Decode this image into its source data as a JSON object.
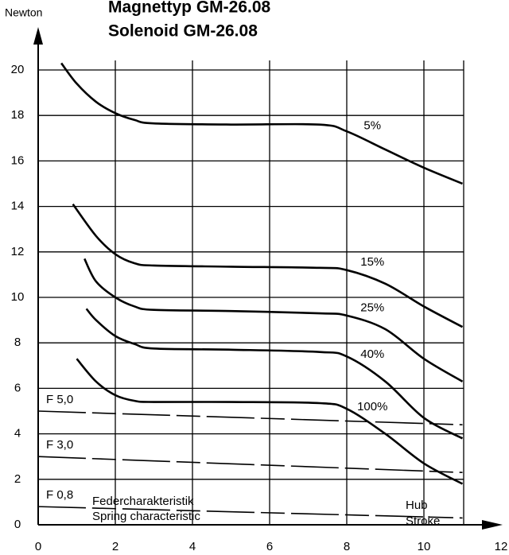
{
  "chart_data": {
    "type": "line",
    "title": "Magnettyp GM-26.08",
    "subtitle": "Solenoid GM-26.08",
    "ylabel": "Newton",
    "xlabel": [
      "Hub",
      "Stroke"
    ],
    "annotations": [
      "Federcharakteristik",
      "Spring characteristic"
    ],
    "xlim": [
      0,
      12
    ],
    "ylim": [
      0,
      20
    ],
    "xticks": [
      0,
      2,
      4,
      6,
      8,
      10,
      12
    ],
    "yticks": [
      0,
      2,
      4,
      6,
      8,
      10,
      12,
      14,
      16,
      18,
      20
    ],
    "grid": true,
    "series": [
      {
        "name": "5%",
        "color": "#000000",
        "style": "solid",
        "x": [
          0.6,
          1.0,
          1.5,
          2.0,
          2.5,
          3.0,
          5.0,
          7.3,
          8.0,
          9.0,
          10.0,
          11.0
        ],
        "values": [
          20.3,
          19.4,
          18.6,
          18.1,
          17.8,
          17.65,
          17.6,
          17.6,
          17.3,
          16.5,
          15.7,
          15.0
        ]
      },
      {
        "name": "15%",
        "color": "#000000",
        "style": "solid",
        "x": [
          0.9,
          1.5,
          2.0,
          2.5,
          3.0,
          5.0,
          7.3,
          8.0,
          9.0,
          10.0,
          11.0
        ],
        "values": [
          14.1,
          12.7,
          11.9,
          11.5,
          11.4,
          11.35,
          11.3,
          11.2,
          10.6,
          9.6,
          8.7
        ]
      },
      {
        "name": "25%",
        "color": "#000000",
        "style": "solid",
        "x": [
          1.2,
          1.5,
          2.0,
          2.5,
          3.0,
          5.0,
          7.3,
          8.0,
          9.0,
          10.0,
          11.0
        ],
        "values": [
          11.7,
          10.7,
          10.0,
          9.6,
          9.45,
          9.4,
          9.3,
          9.2,
          8.6,
          7.3,
          6.3
        ]
      },
      {
        "name": "40%",
        "color": "#000000",
        "style": "solid",
        "x": [
          1.25,
          1.5,
          2.0,
          2.5,
          3.0,
          5.0,
          7.3,
          8.0,
          9.0,
          10.0,
          11.0
        ],
        "values": [
          9.5,
          9.0,
          8.3,
          7.95,
          7.75,
          7.7,
          7.6,
          7.4,
          6.3,
          4.7,
          3.8
        ]
      },
      {
        "name": "100%",
        "color": "#000000",
        "style": "solid",
        "x": [
          1.0,
          1.5,
          2.0,
          2.5,
          3.0,
          5.0,
          7.3,
          8.0,
          9.0,
          10.0,
          11.0
        ],
        "values": [
          7.3,
          6.3,
          5.7,
          5.45,
          5.4,
          5.4,
          5.35,
          5.1,
          4.0,
          2.7,
          1.8
        ]
      },
      {
        "name": "F 5,0",
        "color": "#000000",
        "style": "dashed",
        "x": [
          0,
          11
        ],
        "values": [
          5.0,
          4.4
        ]
      },
      {
        "name": "F 3,0",
        "color": "#000000",
        "style": "dashed",
        "x": [
          0,
          11
        ],
        "values": [
          3.0,
          2.3
        ]
      },
      {
        "name": "F 0,8",
        "color": "#000000",
        "style": "dashed",
        "x": [
          0,
          11
        ],
        "values": [
          0.8,
          0.3
        ]
      }
    ]
  }
}
